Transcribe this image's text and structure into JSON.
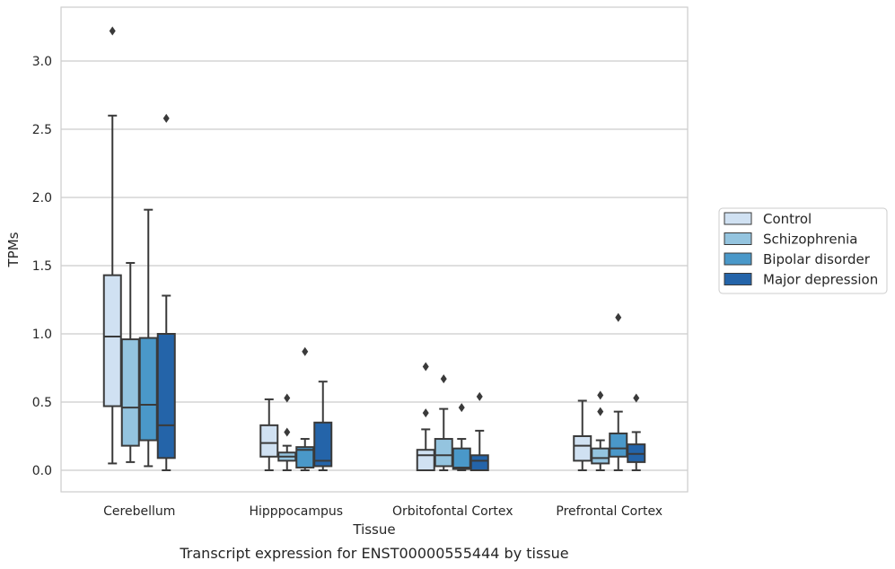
{
  "caption": "Transcript expression for ENST00000555444 by tissue",
  "chart_data": {
    "type": "box",
    "xlabel": "Tissue",
    "ylabel": "TPMs",
    "ylim": [
      -0.15,
      3.4
    ],
    "yticks": [
      "0.0",
      "0.5",
      "1.0",
      "1.5",
      "2.0",
      "2.5",
      "3.0"
    ],
    "grid": "horizontal",
    "legend_position": "right",
    "categories": [
      "Cerebellum",
      "Hipppocampus",
      "Orbitofontal Cortex",
      "Prefrontal Cortex"
    ],
    "series": [
      {
        "name": "Control",
        "color": "#d0e1f2",
        "boxes": [
          {
            "whislo": 0.05,
            "q1": 0.47,
            "med": 0.98,
            "q3": 1.43,
            "whishi": 2.6,
            "fliers": [
              3.22
            ]
          },
          {
            "whislo": 0.0,
            "q1": 0.1,
            "med": 0.2,
            "q3": 0.33,
            "whishi": 0.52,
            "fliers": []
          },
          {
            "whislo": 0.0,
            "q1": 0.0,
            "med": 0.11,
            "q3": 0.15,
            "whishi": 0.3,
            "fliers": [
              0.42,
              0.76
            ]
          },
          {
            "whislo": 0.0,
            "q1": 0.07,
            "med": 0.18,
            "q3": 0.25,
            "whishi": 0.51,
            "fliers": []
          }
        ]
      },
      {
        "name": "Schizophrenia",
        "color": "#94c4df",
        "boxes": [
          {
            "whislo": 0.06,
            "q1": 0.18,
            "med": 0.46,
            "q3": 0.96,
            "whishi": 1.52,
            "fliers": []
          },
          {
            "whislo": 0.0,
            "q1": 0.07,
            "med": 0.1,
            "q3": 0.13,
            "whishi": 0.18,
            "fliers": [
              0.28,
              0.53
            ]
          },
          {
            "whislo": 0.0,
            "q1": 0.03,
            "med": 0.11,
            "q3": 0.23,
            "whishi": 0.45,
            "fliers": [
              0.67
            ]
          },
          {
            "whislo": 0.0,
            "q1": 0.05,
            "med": 0.09,
            "q3": 0.16,
            "whishi": 0.22,
            "fliers": [
              0.43,
              0.55
            ]
          }
        ]
      },
      {
        "name": "Bipolar disorder",
        "color": "#4a98c9",
        "boxes": [
          {
            "whislo": 0.03,
            "q1": 0.22,
            "med": 0.48,
            "q3": 0.97,
            "whishi": 1.91,
            "fliers": []
          },
          {
            "whislo": 0.0,
            "q1": 0.02,
            "med": 0.15,
            "q3": 0.17,
            "whishi": 0.23,
            "fliers": [
              0.87
            ]
          },
          {
            "whislo": 0.0,
            "q1": 0.01,
            "med": 0.02,
            "q3": 0.16,
            "whishi": 0.23,
            "fliers": [
              0.46
            ]
          },
          {
            "whislo": 0.0,
            "q1": 0.1,
            "med": 0.16,
            "q3": 0.27,
            "whishi": 0.43,
            "fliers": [
              1.12
            ]
          }
        ]
      },
      {
        "name": "Major depression",
        "color": "#2464a9",
        "boxes": [
          {
            "whislo": 0.0,
            "q1": 0.09,
            "med": 0.33,
            "q3": 1.0,
            "whishi": 1.28,
            "fliers": [
              2.58
            ]
          },
          {
            "whislo": 0.0,
            "q1": 0.03,
            "med": 0.07,
            "q3": 0.35,
            "whishi": 0.65,
            "fliers": []
          },
          {
            "whislo": 0.0,
            "q1": 0.0,
            "med": 0.07,
            "q3": 0.11,
            "whishi": 0.29,
            "fliers": [
              0.54
            ]
          },
          {
            "whislo": 0.0,
            "q1": 0.06,
            "med": 0.12,
            "q3": 0.19,
            "whishi": 0.28,
            "fliers": [
              0.53
            ]
          }
        ]
      }
    ]
  }
}
